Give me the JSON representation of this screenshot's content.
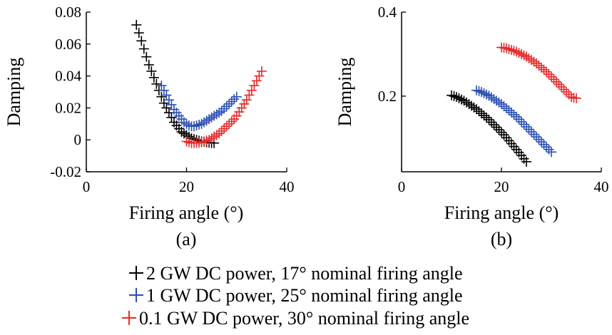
{
  "series_names": [
    "2 GW DC power, 17° nominal firing angle",
    "1 GW DC power, 25° nominal firing angle",
    "0.1 GW DC power, 30° nominal firing angle"
  ],
  "series_colors": [
    "#000000",
    "#2b4fb5",
    "#e62a2a"
  ],
  "legend": {
    "items": [
      {
        "label": "2 GW DC power, 17° nominal firing angle",
        "color": "#000000"
      },
      {
        "label": "1 GW DC power, 25° nominal firing angle",
        "color": "#2b4fb5"
      },
      {
        "label": "0.1 GW DC power, 30° nominal firing angle",
        "color": "#e62a2a"
      }
    ]
  },
  "chart_data": [
    {
      "type": "scatter",
      "caption": "(a)",
      "xlabel": "Firing angle (°)",
      "ylabel": "Damping",
      "xlim": [
        0,
        40
      ],
      "ylim": [
        -0.02,
        0.08
      ],
      "xticks": [
        0,
        20,
        40
      ],
      "xtick_labels": [
        "0",
        "20",
        "40"
      ],
      "yticks": [
        -0.02,
        0,
        0.02,
        0.04,
        0.06,
        0.08
      ],
      "ytick_labels": [
        "-0.02",
        "0",
        "0.02",
        "0.04",
        "0.06",
        "0.08"
      ],
      "grid": false,
      "marker": "plus",
      "series": [
        {
          "name": "2 GW DC power, 17° nominal firing angle",
          "color": "#000000",
          "x": [
            10,
            10.5,
            11,
            11.5,
            12,
            12.5,
            13,
            13.5,
            14,
            14.5,
            15,
            15.5,
            16,
            16.5,
            17,
            17.5,
            18,
            18.5,
            19,
            19.5,
            20,
            20.5,
            21,
            21.5,
            22,
            22.5,
            23,
            23.5,
            24,
            24.5,
            25,
            25.5
          ],
          "y": [
            0.072,
            0.067,
            0.062,
            0.057,
            0.052,
            0.047,
            0.043,
            0.039,
            0.035,
            0.031,
            0.027,
            0.023,
            0.02,
            0.017,
            0.014,
            0.011,
            0.009,
            0.007,
            0.005,
            0.004,
            0.003,
            0.002,
            0.001,
            0.0005,
            0.0,
            -0.0005,
            -0.001,
            -0.0012,
            -0.0015,
            -0.0017,
            -0.002,
            -0.002
          ]
        },
        {
          "name": "1 GW DC power, 25° nominal firing angle",
          "color": "#2b4fb5",
          "x": [
            15,
            15.5,
            16,
            16.5,
            17,
            17.5,
            18,
            18.5,
            19,
            19.5,
            20,
            20.5,
            21,
            21.5,
            22,
            22.5,
            23,
            23.5,
            24,
            24.5,
            25,
            25.5,
            26,
            26.5,
            27,
            27.5,
            28,
            28.5,
            29,
            29.5,
            30
          ],
          "y": [
            0.034,
            0.031,
            0.028,
            0.025,
            0.022,
            0.019,
            0.017,
            0.015,
            0.013,
            0.011,
            0.01,
            0.009,
            0.0085,
            0.0085,
            0.009,
            0.0095,
            0.01,
            0.011,
            0.012,
            0.013,
            0.014,
            0.015,
            0.016,
            0.017,
            0.018,
            0.0195,
            0.021,
            0.0225,
            0.024,
            0.0255,
            0.027
          ]
        },
        {
          "name": "0.1 GW DC power, 30° nominal firing angle",
          "color": "#e62a2a",
          "x": [
            20,
            20.5,
            21,
            21.5,
            22,
            22.5,
            23,
            23.5,
            24,
            24.5,
            25,
            25.5,
            26,
            26.5,
            27,
            27.5,
            28,
            28.5,
            29,
            29.5,
            30,
            30.5,
            31,
            31.5,
            32,
            32.5,
            33,
            33.5,
            34,
            34.5,
            35
          ],
          "y": [
            -0.001,
            -0.0015,
            -0.002,
            -0.002,
            -0.002,
            -0.0018,
            -0.0015,
            -0.001,
            -0.0005,
            0.0,
            0.001,
            0.002,
            0.003,
            0.004,
            0.0055,
            0.007,
            0.0085,
            0.01,
            0.0115,
            0.013,
            0.015,
            0.0175,
            0.02,
            0.0225,
            0.025,
            0.028,
            0.031,
            0.034,
            0.037,
            0.04,
            0.043
          ]
        }
      ]
    },
    {
      "type": "scatter",
      "caption": "(b)",
      "xlabel": "Firing angle (°)",
      "ylabel": "Damping",
      "xlim": [
        0,
        40
      ],
      "ylim": [
        0.02,
        0.4
      ],
      "xticks": [
        0,
        20,
        40
      ],
      "xtick_labels": [
        "0",
        "20",
        "40"
      ],
      "yticks": [
        0.2,
        0.4
      ],
      "ytick_labels": [
        "0.2",
        "0.4"
      ],
      "grid": false,
      "marker": "plus",
      "series": [
        {
          "name": "2 GW DC power, 17° nominal firing angle",
          "color": "#000000",
          "x": [
            10,
            10.5,
            11,
            11.5,
            12,
            12.5,
            13,
            13.5,
            14,
            14.5,
            15,
            15.5,
            16,
            16.5,
            17,
            17.5,
            18,
            18.5,
            19,
            19.5,
            20,
            20.5,
            21,
            21.5,
            22,
            22.5,
            23,
            23.5,
            24,
            24.5,
            25
          ],
          "y": [
            0.202,
            0.2,
            0.198,
            0.195,
            0.192,
            0.189,
            0.185,
            0.181,
            0.177,
            0.173,
            0.169,
            0.164,
            0.159,
            0.154,
            0.149,
            0.144,
            0.138,
            0.132,
            0.126,
            0.12,
            0.114,
            0.108,
            0.101,
            0.094,
            0.087,
            0.08,
            0.073,
            0.066,
            0.059,
            0.051,
            0.044
          ]
        },
        {
          "name": "1 GW DC power, 25° nominal firing angle",
          "color": "#2b4fb5",
          "x": [
            15,
            15.5,
            16,
            16.5,
            17,
            17.5,
            18,
            18.5,
            19,
            19.5,
            20,
            20.5,
            21,
            21.5,
            22,
            22.5,
            23,
            23.5,
            24,
            24.5,
            25,
            25.5,
            26,
            26.5,
            27,
            27.5,
            28,
            28.5,
            29,
            29.5,
            30
          ],
          "y": [
            0.214,
            0.212,
            0.21,
            0.207,
            0.204,
            0.201,
            0.197,
            0.193,
            0.189,
            0.185,
            0.181,
            0.176,
            0.171,
            0.166,
            0.161,
            0.156,
            0.151,
            0.145,
            0.139,
            0.133,
            0.127,
            0.121,
            0.115,
            0.109,
            0.103,
            0.097,
            0.091,
            0.085,
            0.079,
            0.073,
            0.067
          ]
        },
        {
          "name": "0.1 GW DC power, 30° nominal firing angle",
          "color": "#e62a2a",
          "x": [
            20,
            20.5,
            21,
            21.5,
            22,
            22.5,
            23,
            23.5,
            24,
            24.5,
            25,
            25.5,
            26,
            26.5,
            27,
            27.5,
            28,
            28.5,
            29,
            29.5,
            30,
            30.5,
            31,
            31.5,
            32,
            32.5,
            33,
            33.5,
            34,
            34.5,
            35
          ],
          "y": [
            0.316,
            0.315,
            0.314,
            0.312,
            0.31,
            0.308,
            0.306,
            0.303,
            0.3,
            0.297,
            0.294,
            0.29,
            0.286,
            0.282,
            0.278,
            0.273,
            0.268,
            0.263,
            0.258,
            0.252,
            0.246,
            0.24,
            0.234,
            0.228,
            0.222,
            0.216,
            0.21,
            0.204,
            0.198,
            0.196,
            0.195
          ]
        }
      ]
    }
  ]
}
